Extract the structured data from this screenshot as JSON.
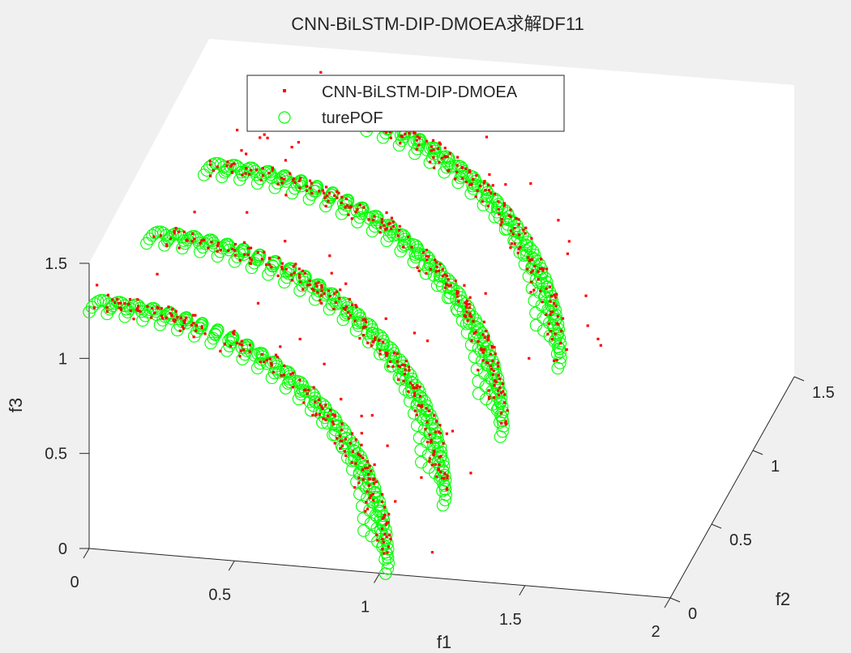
{
  "chart_data": {
    "type": "scatter3d",
    "title": "CNN-BiLSTM-DIP-DMOEA求解DF11",
    "xlabel": "f1",
    "ylabel": "f2",
    "zlabel": "f3",
    "xlim": [
      0,
      2
    ],
    "ylim": [
      0,
      1.5
    ],
    "zlim": [
      0,
      1.5
    ],
    "xticks": [
      "0",
      "0.5",
      "1",
      "1.5",
      "2"
    ],
    "yticks": [
      "0",
      "0.5",
      "1",
      "1.5"
    ],
    "zticks": [
      "0",
      "0.5",
      "1",
      "1.5"
    ],
    "grid": false,
    "legend_position": "top",
    "series": [
      {
        "name": "CNN-BiLSTM-DIP-DMOEA",
        "marker": "point",
        "color": "#ff0000",
        "description_note": "",
        "fronts": [
          {
            "offset": 0.0
          },
          {
            "offset": 0.25
          },
          {
            "offset": 0.5
          },
          {
            "offset": 0.75
          }
        ]
      },
      {
        "name": "turePOF",
        "marker": "circle",
        "color": "#00ff00",
        "fronts": [
          {
            "offset": 0.0
          },
          {
            "offset": 0.25
          },
          {
            "offset": 0.5
          },
          {
            "offset": 0.75
          }
        ]
      }
    ]
  }
}
